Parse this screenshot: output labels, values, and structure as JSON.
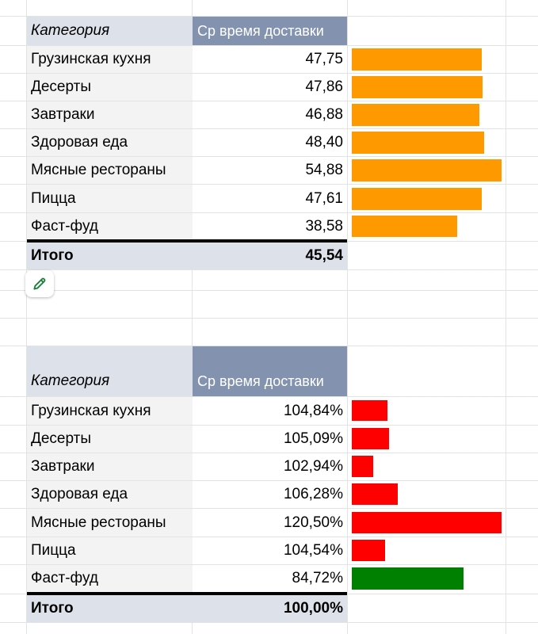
{
  "colors": {
    "bar_orange": "#ff9900",
    "bar_red": "#ff0000",
    "bar_green": "#008000",
    "header_value_bg": "#8393af",
    "header_label_bg": "#dde2ea"
  },
  "icons": {
    "edit": "pencil-icon"
  },
  "table1": {
    "header": {
      "category": "Категория",
      "value": "Ср время доставки"
    },
    "rows": [
      {
        "category": "Грузинская кухня",
        "value": "47,75",
        "bar": 47.75
      },
      {
        "category": "Десерты",
        "value": "47,86",
        "bar": 47.86
      },
      {
        "category": "Завтраки",
        "value": "46,88",
        "bar": 46.88
      },
      {
        "category": "Здоровая еда",
        "value": "48,40",
        "bar": 48.4
      },
      {
        "category": "Мясные рестораны",
        "value": "54,88",
        "bar": 54.88
      },
      {
        "category": "Пицца",
        "value": "47,61",
        "bar": 47.61
      },
      {
        "category": "Фаст-фуд",
        "value": "38,58",
        "bar": 38.58
      }
    ],
    "total": {
      "label": "Итого",
      "value": "45,54"
    }
  },
  "table2": {
    "header": {
      "category": "Категория",
      "value": "Ср время доставки"
    },
    "rows": [
      {
        "category": "Грузинская кухня",
        "value": "104,84%",
        "bar": 104.84
      },
      {
        "category": "Десерты",
        "value": "105,09%",
        "bar": 105.09
      },
      {
        "category": "Завтраки",
        "value": "102,94%",
        "bar": 102.94
      },
      {
        "category": "Здоровая еда",
        "value": "106,28%",
        "bar": 106.28
      },
      {
        "category": "Мясные рестораны",
        "value": "120,50%",
        "bar": 120.5
      },
      {
        "category": "Пицца",
        "value": "104,54%",
        "bar": 104.54
      },
      {
        "category": "Фаст-фуд",
        "value": "84,72%",
        "bar": 84.72
      }
    ],
    "total": {
      "label": "Итого",
      "value": "100,00%"
    }
  }
}
